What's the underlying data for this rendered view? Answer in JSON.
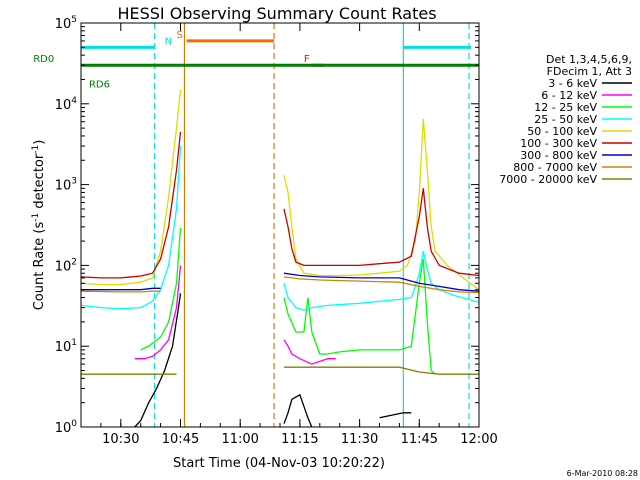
{
  "chart_data": {
    "type": "line",
    "title": "HESSI Observing Summary Count Rates",
    "xlabel": "Start Time (04-Nov-03 10:20:22)",
    "ylabel": "Count Rate (s",
    "ylabel_sup": "-1",
    "ylabel_mid": " detector",
    "ylabel_sup2": "-1",
    "ylabel_end": ")",
    "x_scale": "minutes after 10:20:22",
    "xlim": [
      0,
      100
    ],
    "y_scale": "log",
    "ylim": [
      1,
      100000
    ],
    "x_ticks": [
      {
        "v": 10,
        "label": "10:30"
      },
      {
        "v": 25,
        "label": "10:45"
      },
      {
        "v": 40,
        "label": "11:00"
      },
      {
        "v": 55,
        "label": "11:15"
      },
      {
        "v": 70,
        "label": "11:30"
      },
      {
        "v": 85,
        "label": "11:45"
      },
      {
        "v": 100,
        "label": "12:00"
      }
    ],
    "y_ticks": [
      {
        "v": 1,
        "base": "10",
        "exp": "0"
      },
      {
        "v": 10,
        "base": "10",
        "exp": "1"
      },
      {
        "v": 100,
        "base": "10",
        "exp": "2"
      },
      {
        "v": 1000,
        "base": "10",
        "exp": "3"
      },
      {
        "v": 10000,
        "base": "10",
        "exp": "4"
      },
      {
        "v": 100000,
        "base": "10",
        "exp": "5"
      }
    ],
    "legend_header": [
      "Det 1,3,4,5,6,9,",
      "FDecim 1, Att 3"
    ],
    "legend_position": "right",
    "timestamp": "6-Mar-2010 08:28",
    "vlines": [
      {
        "x": 18.5,
        "color": "#00e0e0",
        "dash": true
      },
      {
        "x": 26,
        "color": "#d08000",
        "dash": false
      },
      {
        "x": 48.5,
        "color": "#e07010",
        "dash": true
      },
      {
        "x": 81,
        "color": "#00e0e0",
        "dash": false
      },
      {
        "x": 97.5,
        "color": "#00e0e0",
        "dash": true
      }
    ],
    "flags": [
      {
        "label": "N",
        "label_x": 21,
        "color": "#00e0e0",
        "y": 50000,
        "segments": [
          [
            0,
            18.5
          ],
          [
            81,
            98
          ]
        ]
      },
      {
        "label": "S",
        "label_x": 24,
        "color": "#ff6a00",
        "y": 60000,
        "segments": [
          [
            26.5,
            48.5
          ]
        ]
      },
      {
        "label": "F",
        "label_x": 56,
        "color": "#ff0000",
        "y": 30000,
        "segments": [
          [
            58,
            61
          ]
        ]
      },
      {
        "label": "RD0",
        "label_x": -12,
        "color": "#008000",
        "y": 30000,
        "segments": [
          [
            0,
            100
          ]
        ]
      },
      {
        "label": "RD6",
        "label_x": 2,
        "color": "#008000",
        "y": 20000,
        "segments": []
      }
    ],
    "series": [
      {
        "name": "3 - 6 keV",
        "color": "#000000",
        "segments": [
          [
            [
              13.5,
              1
            ],
            [
              15,
              1.2
            ],
            [
              17,
              2
            ],
            [
              19,
              3
            ],
            [
              21,
              5
            ],
            [
              23,
              10
            ],
            [
              24.5,
              30
            ],
            [
              25,
              45
            ]
          ],
          [
            [
              51,
              1.1
            ],
            [
              52,
              1.5
            ],
            [
              53,
              2.2
            ],
            [
              55,
              2.5
            ],
            [
              57,
              1.3
            ],
            [
              58,
              1
            ]
          ],
          [
            [
              75,
              1.3
            ],
            [
              78,
              1.4
            ],
            [
              81,
              1.5
            ],
            [
              83,
              1.5
            ]
          ]
        ]
      },
      {
        "name": "6 - 12 keV",
        "color": "#ff00ff",
        "segments": [
          [
            [
              13.5,
              7
            ],
            [
              16,
              7
            ],
            [
              18,
              7.5
            ],
            [
              20,
              9
            ],
            [
              22,
              12
            ],
            [
              24,
              30
            ],
            [
              25,
              100
            ]
          ],
          [
            [
              51,
              12
            ],
            [
              52,
              10
            ],
            [
              53,
              8
            ],
            [
              55,
              7
            ],
            [
              58,
              6
            ],
            [
              62,
              7
            ],
            [
              64,
              7
            ]
          ]
        ]
      },
      {
        "name": "12 - 25 keV",
        "color": "#00ff00",
        "segments": [
          [
            [
              15,
              9
            ],
            [
              17,
              10
            ],
            [
              20,
              13
            ],
            [
              22,
              20
            ],
            [
              24,
              60
            ],
            [
              25,
              290
            ]
          ],
          [
            [
              51,
              40
            ],
            [
              52,
              25
            ],
            [
              54,
              15
            ],
            [
              56,
              15
            ],
            [
              57,
              40
            ],
            [
              58,
              15
            ],
            [
              60,
              8
            ],
            [
              62,
              8
            ],
            [
              65,
              8.5
            ],
            [
              70,
              9
            ],
            [
              80,
              9
            ],
            [
              83,
              10
            ],
            [
              85,
              60
            ],
            [
              86,
              120
            ],
            [
              87,
              20
            ],
            [
              88,
              5
            ],
            [
              89,
              4.5
            ]
          ]
        ]
      },
      {
        "name": "25 - 50 keV",
        "color": "#00ffff",
        "segments": [
          [
            [
              0,
              32
            ],
            [
              5,
              30
            ],
            [
              10,
              29
            ],
            [
              15,
              30
            ],
            [
              18,
              36
            ],
            [
              20,
              50
            ],
            [
              22,
              100
            ],
            [
              24,
              500
            ],
            [
              25,
              3000
            ]
          ],
          [
            [
              51,
              60
            ],
            [
              52,
              40
            ],
            [
              54,
              30
            ],
            [
              56,
              28
            ],
            [
              58,
              30
            ],
            [
              62,
              32
            ],
            [
              66,
              33
            ],
            [
              70,
              34
            ],
            [
              75,
              36
            ],
            [
              80,
              38
            ],
            [
              83,
              40
            ],
            [
              84,
              55
            ],
            [
              85,
              80
            ],
            [
              86,
              150
            ],
            [
              87,
              90
            ],
            [
              88,
              60
            ],
            [
              90,
              50
            ],
            [
              94,
              42
            ],
            [
              100,
              35
            ]
          ]
        ]
      },
      {
        "name": "50 - 100 keV",
        "color": "#dddd00",
        "segments": [
          [
            [
              0,
              60
            ],
            [
              5,
              58
            ],
            [
              10,
              58
            ],
            [
              15,
              62
            ],
            [
              18,
              70
            ],
            [
              20,
              150
            ],
            [
              22,
              700
            ],
            [
              24,
              5000
            ],
            [
              25,
              15000
            ]
          ],
          [
            [
              51,
              1300
            ],
            [
              52,
              800
            ],
            [
              53,
              300
            ],
            [
              54,
              120
            ],
            [
              56,
              80
            ],
            [
              60,
              75
            ],
            [
              65,
              75
            ],
            [
              70,
              76
            ],
            [
              75,
              80
            ],
            [
              80,
              85
            ],
            [
              82,
              100
            ],
            [
              84,
              200
            ],
            [
              85,
              800
            ],
            [
              86,
              6500
            ],
            [
              87,
              1500
            ],
            [
              88,
              300
            ],
            [
              89,
              150
            ],
            [
              92,
              100
            ],
            [
              96,
              70
            ],
            [
              100,
              50
            ]
          ]
        ]
      },
      {
        "name": "100 - 300 keV",
        "color": "#cc0000",
        "segments": [
          [
            [
              0,
              72
            ],
            [
              5,
              70
            ],
            [
              10,
              70
            ],
            [
              15,
              74
            ],
            [
              18,
              80
            ],
            [
              20,
              120
            ],
            [
              22,
              300
            ],
            [
              24,
              1500
            ],
            [
              25,
              4500
            ]
          ],
          [
            [
              51,
              500
            ],
            [
              52,
              300
            ],
            [
              53,
              160
            ],
            [
              54,
              110
            ],
            [
              56,
              100
            ],
            [
              60,
              100
            ],
            [
              65,
              100
            ],
            [
              70,
              100
            ],
            [
              75,
              105
            ],
            [
              80,
              110
            ],
            [
              83,
              130
            ],
            [
              85,
              400
            ],
            [
              86,
              900
            ],
            [
              87,
              300
            ],
            [
              88,
              150
            ],
            [
              90,
              100
            ],
            [
              95,
              80
            ],
            [
              100,
              75
            ]
          ]
        ]
      },
      {
        "name": "300 - 800 keV",
        "color": "#0000cc",
        "segments": [
          [
            [
              0,
              50
            ],
            [
              10,
              50
            ],
            [
              15,
              50
            ],
            [
              18,
              52
            ],
            [
              20,
              52
            ]
          ],
          [
            [
              51,
              80
            ],
            [
              55,
              75
            ],
            [
              60,
              72
            ],
            [
              70,
              70
            ],
            [
              80,
              70
            ],
            [
              85,
              60
            ],
            [
              90,
              55
            ],
            [
              95,
              50
            ],
            [
              100,
              48
            ]
          ]
        ]
      },
      {
        "name": "800 - 7000 keV",
        "color": "#cc8800",
        "segments": [
          [
            [
              0,
              48
            ],
            [
              10,
              47
            ],
            [
              15,
              47
            ],
            [
              18,
              48
            ],
            [
              20,
              48
            ]
          ],
          [
            [
              51,
              72
            ],
            [
              55,
              68
            ],
            [
              60,
              66
            ],
            [
              70,
              64
            ],
            [
              80,
              62
            ],
            [
              85,
              55
            ],
            [
              90,
              50
            ],
            [
              95,
              47
            ],
            [
              100,
              46
            ]
          ]
        ]
      },
      {
        "name": "7000 - 20000 keV",
        "color": "#808000",
        "segments": [
          [
            [
              0,
              4.5
            ],
            [
              5,
              4.5
            ],
            [
              10,
              4.5
            ],
            [
              15,
              4.5
            ],
            [
              18,
              4.5
            ],
            [
              24,
              4.5
            ]
          ],
          [
            [
              51,
              5.5
            ],
            [
              55,
              5.5
            ],
            [
              60,
              5.5
            ],
            [
              65,
              5.5
            ],
            [
              70,
              5.5
            ],
            [
              75,
              5.5
            ],
            [
              80,
              5.5
            ],
            [
              85,
              4.8
            ],
            [
              90,
              4.5
            ],
            [
              95,
              4.5
            ],
            [
              100,
              4.5
            ]
          ]
        ]
      }
    ]
  }
}
